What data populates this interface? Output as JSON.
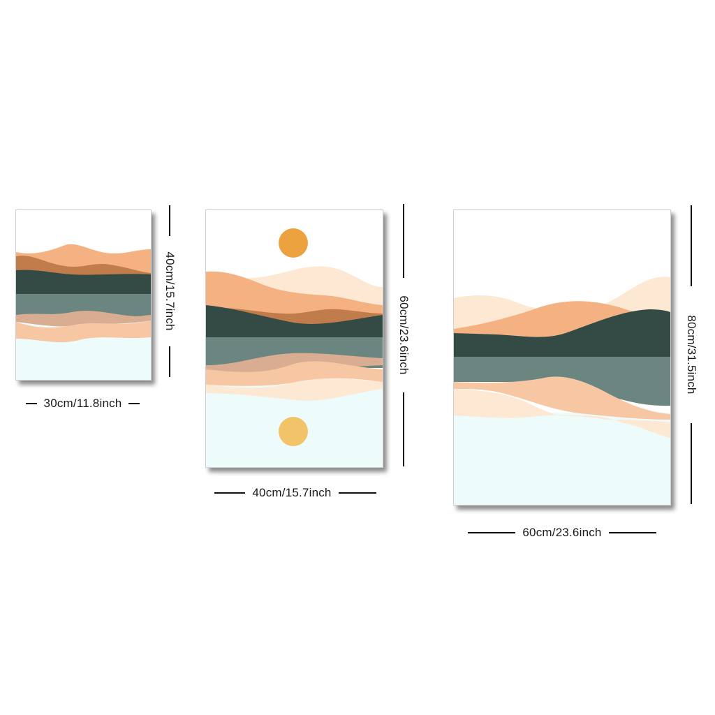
{
  "colors": {
    "sky": "#ffffff",
    "water": "#edfbfb",
    "peach_light": "#fde8d3",
    "peach": "#f4b283",
    "peach_mid": "#f7c7a4",
    "terracotta": "#c07d4b",
    "dark_green": "#344a45",
    "sage": "#6b8680",
    "sun": "#eca33f",
    "sun_reflection": "#f3c36a",
    "dimension_line": "#111111"
  },
  "canvases": [
    {
      "id": "small",
      "width_label": "30cm/11.8inch",
      "height_label": "40cm/15.7inch"
    },
    {
      "id": "medium",
      "width_label": "40cm/15.7inch",
      "height_label": "60cm/23.6inch"
    },
    {
      "id": "large",
      "width_label": "60cm/23.6inch",
      "height_label": "80cm/31.5inch"
    }
  ]
}
